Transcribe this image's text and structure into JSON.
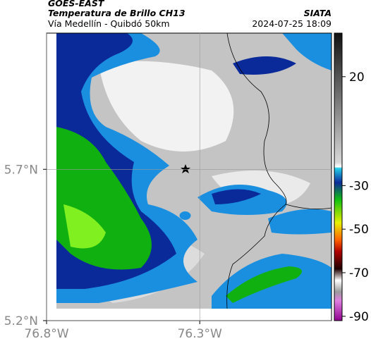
{
  "header": {
    "source": "GOES-EAST",
    "title": "Temperatura de Brillo CH13",
    "subtitle": "Vía Medellín - Quibdó 50km",
    "agency": "SIATA",
    "datetime": "2024-07-25 18:09"
  },
  "map": {
    "xlim": [
      -76.8,
      -75.87
    ],
    "ylim": [
      5.2,
      6.15
    ],
    "xticks": [
      {
        "value": -76.8,
        "label": "76.8°W"
      },
      {
        "value": -76.3,
        "label": "76.3°W"
      }
    ],
    "yticks": [
      {
        "value": 5.2,
        "label": "5.2°N"
      },
      {
        "value": 5.7,
        "label": "5.7°N"
      }
    ],
    "grid": true
  },
  "colorbar": {
    "lim": [
      -92,
      40
    ],
    "ticks": [
      20,
      -30,
      -50,
      -70,
      -90
    ]
  }
}
